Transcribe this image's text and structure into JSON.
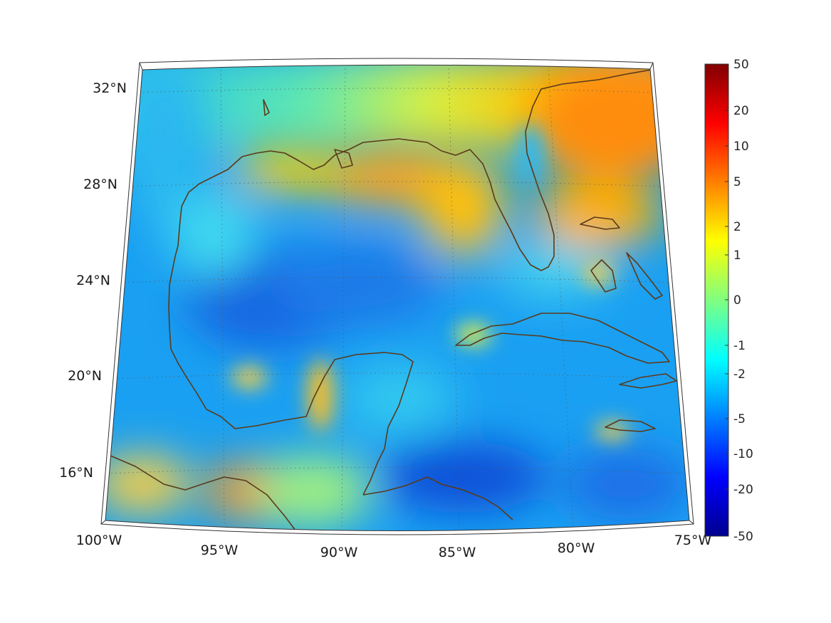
{
  "map": {
    "projection": "conic",
    "lon_range": [
      -100,
      -75
    ],
    "lat_range": [
      14,
      33
    ],
    "longitude_labels": [
      "100°W",
      "95°W",
      "90°W",
      "85°W",
      "80°W",
      "75°W"
    ],
    "latitude_labels": [
      "32°N",
      "28°N",
      "24°N",
      "20°N",
      "16°N"
    ],
    "grid": "dotted",
    "coastline_color": "#5a3a1a"
  },
  "colorbar": {
    "tick_labels": [
      "50",
      "20",
      "10",
      "5",
      "2",
      "1",
      "0",
      "-1",
      "-2",
      "-5",
      "-10",
      "-20",
      "-50"
    ],
    "colormap": "jet",
    "placement": "right"
  }
}
